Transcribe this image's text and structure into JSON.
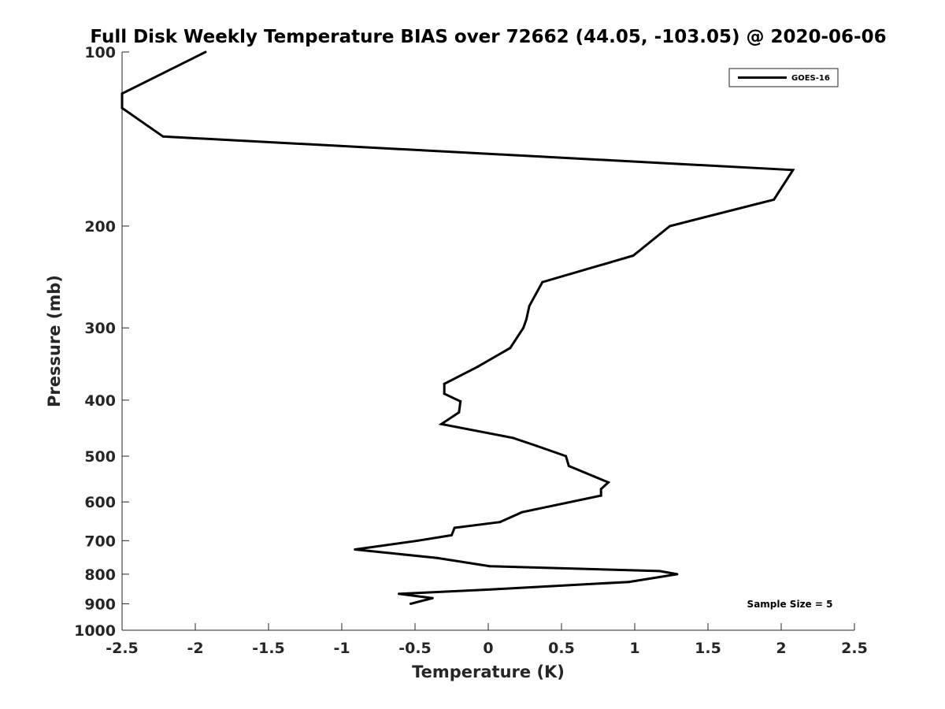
{
  "chart_data": {
    "type": "line",
    "title": "Full Disk Weekly Temperature BIAS over 72662 (44.05, -103.05) @ 2020-06-06",
    "xlabel": "Temperature (K)",
    "ylabel": "Pressure (mb)",
    "xlim": [
      -2.5,
      2.5
    ],
    "ylim": [
      100,
      1000
    ],
    "y_scale": "log",
    "y_reversed": true,
    "x_ticks": [
      "-2.5",
      "-2",
      "-1.5",
      "-1",
      "-0.5",
      "0",
      "0.5",
      "1",
      "1.5",
      "2",
      "2.5"
    ],
    "y_ticks": [
      "100",
      "200",
      "300",
      "400",
      "500",
      "600",
      "700",
      "800",
      "900",
      "1000"
    ],
    "grid": false,
    "legend_position": "top-right",
    "annotation": "Sample Size = 5",
    "series": [
      {
        "name": "GOES-16",
        "color": "#000000",
        "points": [
          {
            "x": -1.93,
            "p": 100
          },
          {
            "x": -2.5,
            "p": 118
          },
          {
            "x": -2.5,
            "p": 125
          },
          {
            "x": -2.22,
            "p": 140
          },
          {
            "x": 2.08,
            "p": 160
          },
          {
            "x": 1.95,
            "p": 180
          },
          {
            "x": 1.24,
            "p": 200
          },
          {
            "x": 0.99,
            "p": 225
          },
          {
            "x": 0.37,
            "p": 250
          },
          {
            "x": 0.28,
            "p": 275
          },
          {
            "x": 0.26,
            "p": 290
          },
          {
            "x": 0.24,
            "p": 300
          },
          {
            "x": 0.15,
            "p": 325
          },
          {
            "x": -0.07,
            "p": 350
          },
          {
            "x": -0.3,
            "p": 375
          },
          {
            "x": -0.3,
            "p": 390
          },
          {
            "x": -0.19,
            "p": 402
          },
          {
            "x": -0.2,
            "p": 420
          },
          {
            "x": -0.32,
            "p": 440
          },
          {
            "x": 0.17,
            "p": 465
          },
          {
            "x": 0.33,
            "p": 480
          },
          {
            "x": 0.53,
            "p": 500
          },
          {
            "x": 0.55,
            "p": 520
          },
          {
            "x": 0.82,
            "p": 555
          },
          {
            "x": 0.77,
            "p": 570
          },
          {
            "x": 0.77,
            "p": 585
          },
          {
            "x": 0.23,
            "p": 625
          },
          {
            "x": 0.08,
            "p": 650
          },
          {
            "x": -0.23,
            "p": 665
          },
          {
            "x": -0.25,
            "p": 685
          },
          {
            "x": -0.48,
            "p": 700
          },
          {
            "x": -0.91,
            "p": 725
          },
          {
            "x": -0.35,
            "p": 750
          },
          {
            "x": 0.01,
            "p": 775
          },
          {
            "x": 1.17,
            "p": 790
          },
          {
            "x": 1.29,
            "p": 800
          },
          {
            "x": 0.96,
            "p": 825
          },
          {
            "x": 0.02,
            "p": 850
          },
          {
            "x": -0.61,
            "p": 865
          },
          {
            "x": -0.38,
            "p": 880
          },
          {
            "x": -0.53,
            "p": 900
          }
        ]
      }
    ]
  }
}
